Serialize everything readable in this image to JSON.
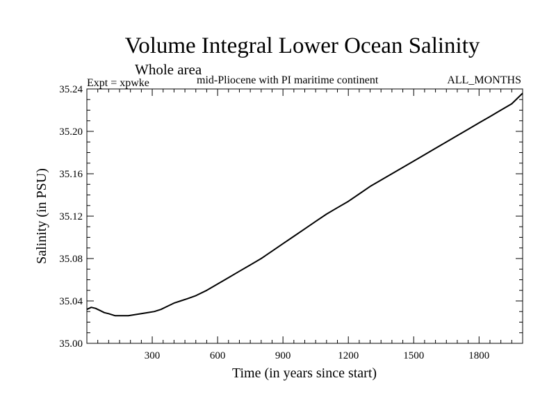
{
  "chart_data": {
    "type": "line",
    "title": "Volume Integral Lower Ocean Salinity",
    "subtitle": "Whole area",
    "expt_label": "Expt = xpwke",
    "description": "mid-Pliocene with PI maritime continent",
    "months_label": "ALL_MONTHS",
    "xlabel": "Time (in years since start)",
    "ylabel": "Salinity (in PSU)",
    "xlim": [
      0,
      2000
    ],
    "ylim": [
      35.0,
      35.24
    ],
    "xticks": [
      300,
      600,
      900,
      1200,
      1500,
      1800
    ],
    "xtick_labels": [
      "300",
      "600",
      "900",
      "1200",
      "1500",
      "1800"
    ],
    "yticks": [
      35.0,
      35.04,
      35.08,
      35.12,
      35.16,
      35.2,
      35.24
    ],
    "ytick_labels": [
      "35.00",
      "35.04",
      "35.08",
      "35.12",
      "35.16",
      "35.20",
      "35.24"
    ],
    "series": [
      {
        "name": "xpwke",
        "x": [
          0,
          20,
          40,
          60,
          80,
          100,
          130,
          160,
          190,
          220,
          250,
          280,
          310,
          340,
          370,
          400,
          430,
          460,
          500,
          550,
          600,
          650,
          700,
          750,
          800,
          850,
          900,
          950,
          1000,
          1050,
          1100,
          1150,
          1200,
          1250,
          1300,
          1350,
          1400,
          1450,
          1500,
          1550,
          1600,
          1650,
          1700,
          1750,
          1800,
          1850,
          1900,
          1950,
          2000
        ],
        "values": [
          35.032,
          35.034,
          35.033,
          35.031,
          35.029,
          35.028,
          35.026,
          35.026,
          35.026,
          35.027,
          35.028,
          35.029,
          35.03,
          35.032,
          35.035,
          35.038,
          35.04,
          35.042,
          35.045,
          35.05,
          35.056,
          35.062,
          35.068,
          35.074,
          35.08,
          35.087,
          35.094,
          35.101,
          35.108,
          35.115,
          35.122,
          35.128,
          35.134,
          35.141,
          35.148,
          35.154,
          35.16,
          35.166,
          35.172,
          35.178,
          35.184,
          35.19,
          35.196,
          35.202,
          35.208,
          35.214,
          35.22,
          35.226,
          35.236
        ]
      }
    ]
  }
}
